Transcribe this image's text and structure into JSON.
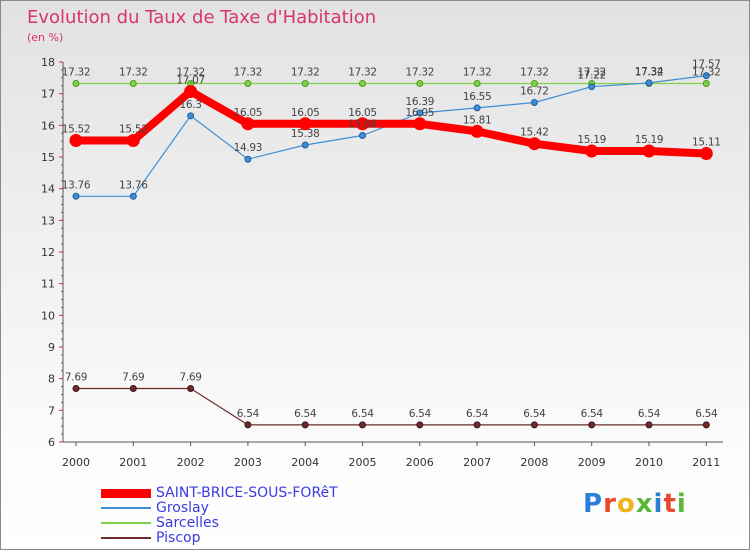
{
  "title": "Evolution du Taux de Taxe d'Habitation",
  "subtitle": "(en %)",
  "logo": {
    "text": "Proxiti",
    "letter_colors": [
      "#2a7fd6",
      "#e8492e",
      "#f2b21c",
      "#59b838",
      "#2a7fd6",
      "#e8492e",
      "#59b838"
    ]
  },
  "chart_data": {
    "type": "line",
    "x": [
      "2000",
      "2001",
      "2002",
      "2003",
      "2004",
      "2005",
      "2006",
      "2007",
      "2008",
      "2009",
      "2010",
      "2011"
    ],
    "ylim": [
      6,
      18
    ],
    "yticks": [
      "6",
      "7",
      "8",
      "9",
      "10",
      "11",
      "12",
      "13",
      "14",
      "15",
      "16",
      "17",
      "18"
    ],
    "grid": false,
    "legend_position": "bottom-left",
    "series": [
      {
        "name": "SAINT-BRICE-SOUS-FORêT",
        "color": "#ff0000",
        "values": [
          15.52,
          15.52,
          17.07,
          16.05,
          16.05,
          16.05,
          16.05,
          15.81,
          15.42,
          15.19,
          15.19,
          15.11
        ],
        "labels": [
          "15.52",
          "15.52",
          "17.07",
          "16.05",
          "16.05",
          "16.05",
          "16.05",
          "15.81",
          "15.42",
          "15.19",
          "15.19",
          "15.11"
        ]
      },
      {
        "name": "Groslay",
        "color": "#3d8ed6",
        "values": [
          13.76,
          13.76,
          16.3,
          14.93,
          15.38,
          15.68,
          16.39,
          16.55,
          16.72,
          17.22,
          17.34,
          17.57
        ],
        "labels": [
          "13.76",
          "13.76",
          "16.3",
          "14.93",
          "15.38",
          "15.68",
          "16.39",
          "16.55",
          "16.72",
          "17.22",
          "17.34",
          "17.57"
        ]
      },
      {
        "name": "Sarcelles",
        "color": "#7fd147",
        "values": [
          17.32,
          17.32,
          17.32,
          17.32,
          17.32,
          17.32,
          17.32,
          17.32,
          17.32,
          17.32,
          17.32,
          17.32
        ],
        "labels": [
          "17.32",
          "17.32",
          "17.32",
          "17.32",
          "17.32",
          "17.32",
          "17.32",
          "17.32",
          "17.32",
          "17.32",
          "17.32",
          "17.32"
        ]
      },
      {
        "name": "Piscop",
        "color": "#6b2c2c",
        "values": [
          7.69,
          7.69,
          7.69,
          6.54,
          6.54,
          6.54,
          6.54,
          6.54,
          6.54,
          6.54,
          6.54,
          6.54
        ],
        "labels": [
          "7.69",
          "7.69",
          "7.69",
          "6.54",
          "6.54",
          "6.54",
          "6.54",
          "6.54",
          "6.54",
          "6.54",
          "6.54",
          "6.54"
        ]
      }
    ]
  }
}
